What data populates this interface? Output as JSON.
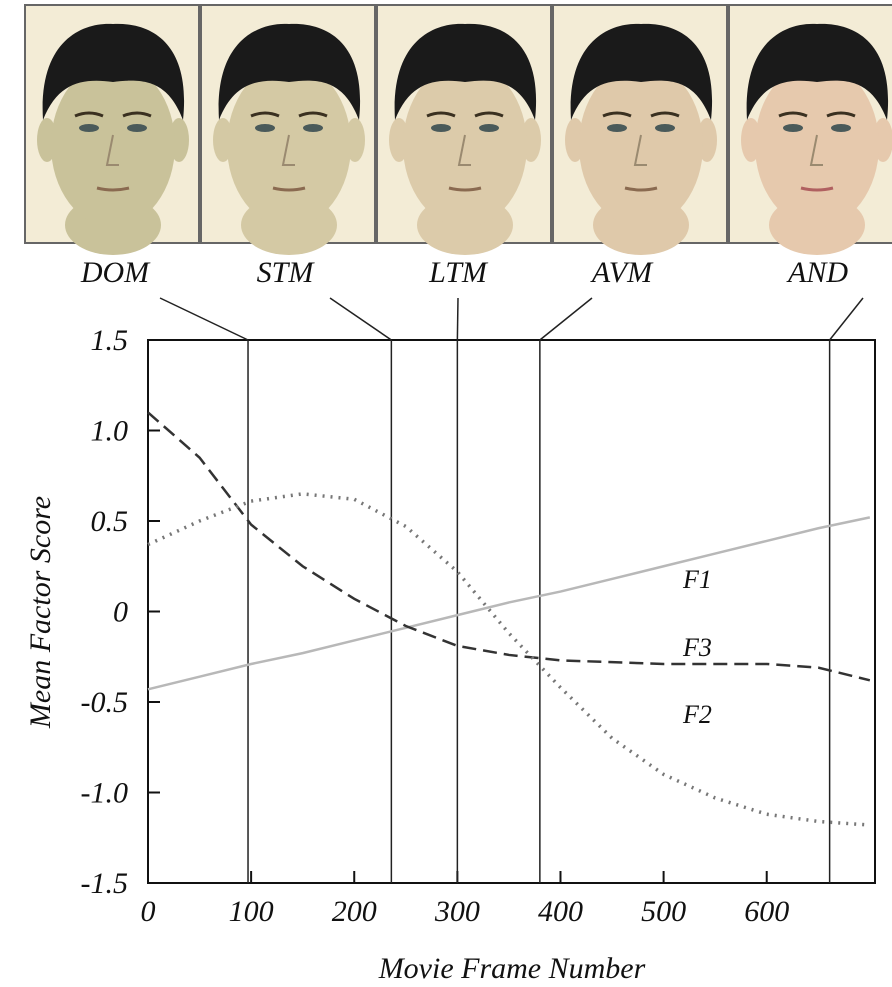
{
  "chart_data": {
    "type": "line",
    "xlabel": "Movie Frame Number",
    "ylabel": "Mean Factor Score",
    "x": [
      0,
      50,
      100,
      150,
      200,
      250,
      300,
      350,
      400,
      450,
      500,
      550,
      600,
      650,
      700
    ],
    "series": [
      {
        "name": "F1",
        "color": "#b8b8b8",
        "style": "solid",
        "values": [
          -0.43,
          -0.36,
          -0.29,
          -0.23,
          -0.16,
          -0.09,
          -0.02,
          0.05,
          0.11,
          0.18,
          0.25,
          0.32,
          0.39,
          0.46,
          0.52
        ]
      },
      {
        "name": "F3",
        "color": "#333333",
        "style": "dashed",
        "values": [
          1.1,
          0.85,
          0.48,
          0.25,
          0.07,
          -0.08,
          -0.19,
          -0.24,
          -0.27,
          -0.28,
          -0.29,
          -0.29,
          -0.29,
          -0.31,
          -0.38
        ]
      },
      {
        "name": "F2",
        "color": "#777777",
        "style": "dotted",
        "values": [
          0.37,
          0.5,
          0.61,
          0.65,
          0.62,
          0.47,
          0.22,
          -0.12,
          -0.42,
          -0.7,
          -0.9,
          -1.03,
          -1.12,
          -1.16,
          -1.18
        ]
      }
    ],
    "markers": [
      {
        "label": "DOM",
        "frame": 97
      },
      {
        "label": "STM",
        "frame": 236
      },
      {
        "label": "LTM",
        "frame": 300
      },
      {
        "label": "AVM",
        "frame": 380
      },
      {
        "label": "AND",
        "frame": 661
      }
    ],
    "xlim": [
      0,
      705
    ],
    "xticks": [
      0,
      100,
      200,
      300,
      400,
      500,
      600
    ],
    "ylim": [
      -1.5,
      1.5
    ],
    "yticks": [
      -1.5,
      {
        "value": -1,
        "label": "-1.0"
      },
      -0.5,
      0,
      0.5,
      {
        "value": 1,
        "label": "1.0"
      },
      1.5
    ]
  }
}
